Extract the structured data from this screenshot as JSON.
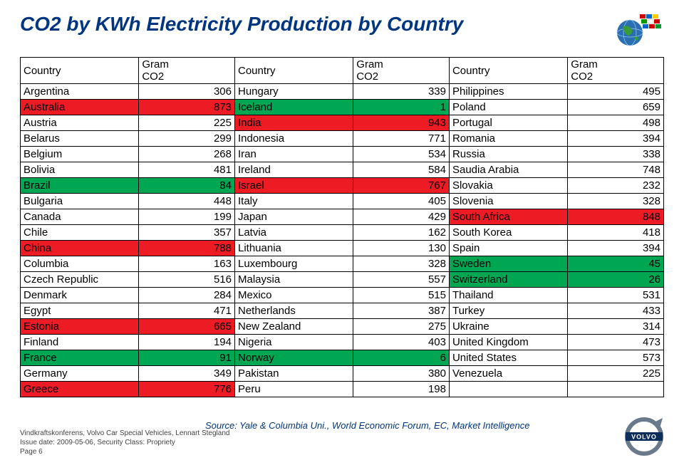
{
  "title": "CO2 by KWh Electricity Production by Country",
  "table": {
    "headers": {
      "country": "Country",
      "gram": "Gram\nCO2"
    },
    "highlight_colors": {
      "green": "#00a651",
      "red": "#ed1c24",
      "none": "#ffffff"
    },
    "font_size": 15,
    "border_color": "#000000",
    "rows": [
      {
        "c1": "Argentina",
        "v1": 306,
        "h1": "none",
        "c2": "Hungary",
        "v2": 339,
        "h2": "none",
        "c3": "Philippines",
        "v3": 495,
        "h3": "none"
      },
      {
        "c1": "Australia",
        "v1": 873,
        "h1": "red",
        "c2": "Iceland",
        "v2": 1,
        "h2": "green",
        "c3": "Poland",
        "v3": 659,
        "h3": "none"
      },
      {
        "c1": "Austria",
        "v1": 225,
        "h1": "none",
        "c2": "India",
        "v2": 943,
        "h2": "red",
        "c3": "Portugal",
        "v3": 498,
        "h3": "none"
      },
      {
        "c1": "Belarus",
        "v1": 299,
        "h1": "none",
        "c2": "Indonesia",
        "v2": 771,
        "h2": "none",
        "c3": "Romania",
        "v3": 394,
        "h3": "none"
      },
      {
        "c1": "Belgium",
        "v1": 268,
        "h1": "none",
        "c2": "Iran",
        "v2": 534,
        "h2": "none",
        "c3": "Russia",
        "v3": 338,
        "h3": "none"
      },
      {
        "c1": "Bolivia",
        "v1": 481,
        "h1": "none",
        "c2": "Ireland",
        "v2": 584,
        "h2": "none",
        "c3": "Saudia Arabia",
        "v3": 748,
        "h3": "none"
      },
      {
        "c1": "Brazil",
        "v1": 84,
        "h1": "green",
        "c2": "Israel",
        "v2": 767,
        "h2": "red",
        "c3": "Slovakia",
        "v3": 232,
        "h3": "none"
      },
      {
        "c1": "Bulgaria",
        "v1": 448,
        "h1": "none",
        "c2": "Italy",
        "v2": 405,
        "h2": "none",
        "c3": "Slovenia",
        "v3": 328,
        "h3": "none"
      },
      {
        "c1": "Canada",
        "v1": 199,
        "h1": "none",
        "c2": "Japan",
        "v2": 429,
        "h2": "none",
        "c3": "South Africa",
        "v3": 848,
        "h3": "red"
      },
      {
        "c1": "Chile",
        "v1": 357,
        "h1": "none",
        "c2": "Latvia",
        "v2": 162,
        "h2": "none",
        "c3": "South Korea",
        "v3": 418,
        "h3": "none"
      },
      {
        "c1": "China",
        "v1": 788,
        "h1": "red",
        "c2": "Lithuania",
        "v2": 130,
        "h2": "none",
        "c3": "Spain",
        "v3": 394,
        "h3": "none"
      },
      {
        "c1": "Columbia",
        "v1": 163,
        "h1": "none",
        "c2": "Luxembourg",
        "v2": 328,
        "h2": "none",
        "c3": "Sweden",
        "v3": 45,
        "h3": "green"
      },
      {
        "c1": "Czech Republic",
        "v1": 516,
        "h1": "none",
        "c2": "Malaysia",
        "v2": 557,
        "h2": "none",
        "c3": "Switzerland",
        "v3": 26,
        "h3": "green"
      },
      {
        "c1": "Denmark",
        "v1": 284,
        "h1": "none",
        "c2": "Mexico",
        "v2": 515,
        "h2": "none",
        "c3": "Thailand",
        "v3": 531,
        "h3": "none"
      },
      {
        "c1": "Egypt",
        "v1": 471,
        "h1": "none",
        "c2": "Netherlands",
        "v2": 387,
        "h2": "none",
        "c3": "Turkey",
        "v3": 433,
        "h3": "none"
      },
      {
        "c1": "Estonia",
        "v1": 665,
        "h1": "red",
        "c2": "New Zealand",
        "v2": 275,
        "h2": "none",
        "c3": "Ukraine",
        "v3": 314,
        "h3": "none"
      },
      {
        "c1": "Finland",
        "v1": 194,
        "h1": "none",
        "c2": "Nigeria",
        "v2": 403,
        "h2": "none",
        "c3": "United Kingdom",
        "v3": 473,
        "h3": "none"
      },
      {
        "c1": "France",
        "v1": 91,
        "h1": "green",
        "c2": "Norway",
        "v2": 6,
        "h2": "green",
        "c3": "United States",
        "v3": 573,
        "h3": "none"
      },
      {
        "c1": "Germany",
        "v1": 349,
        "h1": "none",
        "c2": "Pakistan",
        "v2": 380,
        "h2": "none",
        "c3": "Venezuela",
        "v3": 225,
        "h3": "none"
      },
      {
        "c1": "Greece",
        "v1": 776,
        "h1": "red",
        "c2": "Peru",
        "v2": 198,
        "h2": "none",
        "c3": "",
        "v3": "",
        "h3": "none"
      }
    ]
  },
  "source": "Source: Yale & Columbia Uni., World Economic Forum, EC, Market Intelligence",
  "meta": {
    "line1": "Vindkraftskonferens, Volvo Car Special Vehicles, Lennart Stegland",
    "line2": "Issue date: 2009-05-06, Security Class: Propriety",
    "line3": "Page 6"
  },
  "logo": {
    "brand": "VOLVO",
    "ring_color": "#6a7a8a",
    "text_color": "#ffffff",
    "bar_color": "#0b2e5b"
  },
  "globe_icon": {
    "sphere_color": "#2b6fb3",
    "land_color": "#3a9b3a"
  }
}
